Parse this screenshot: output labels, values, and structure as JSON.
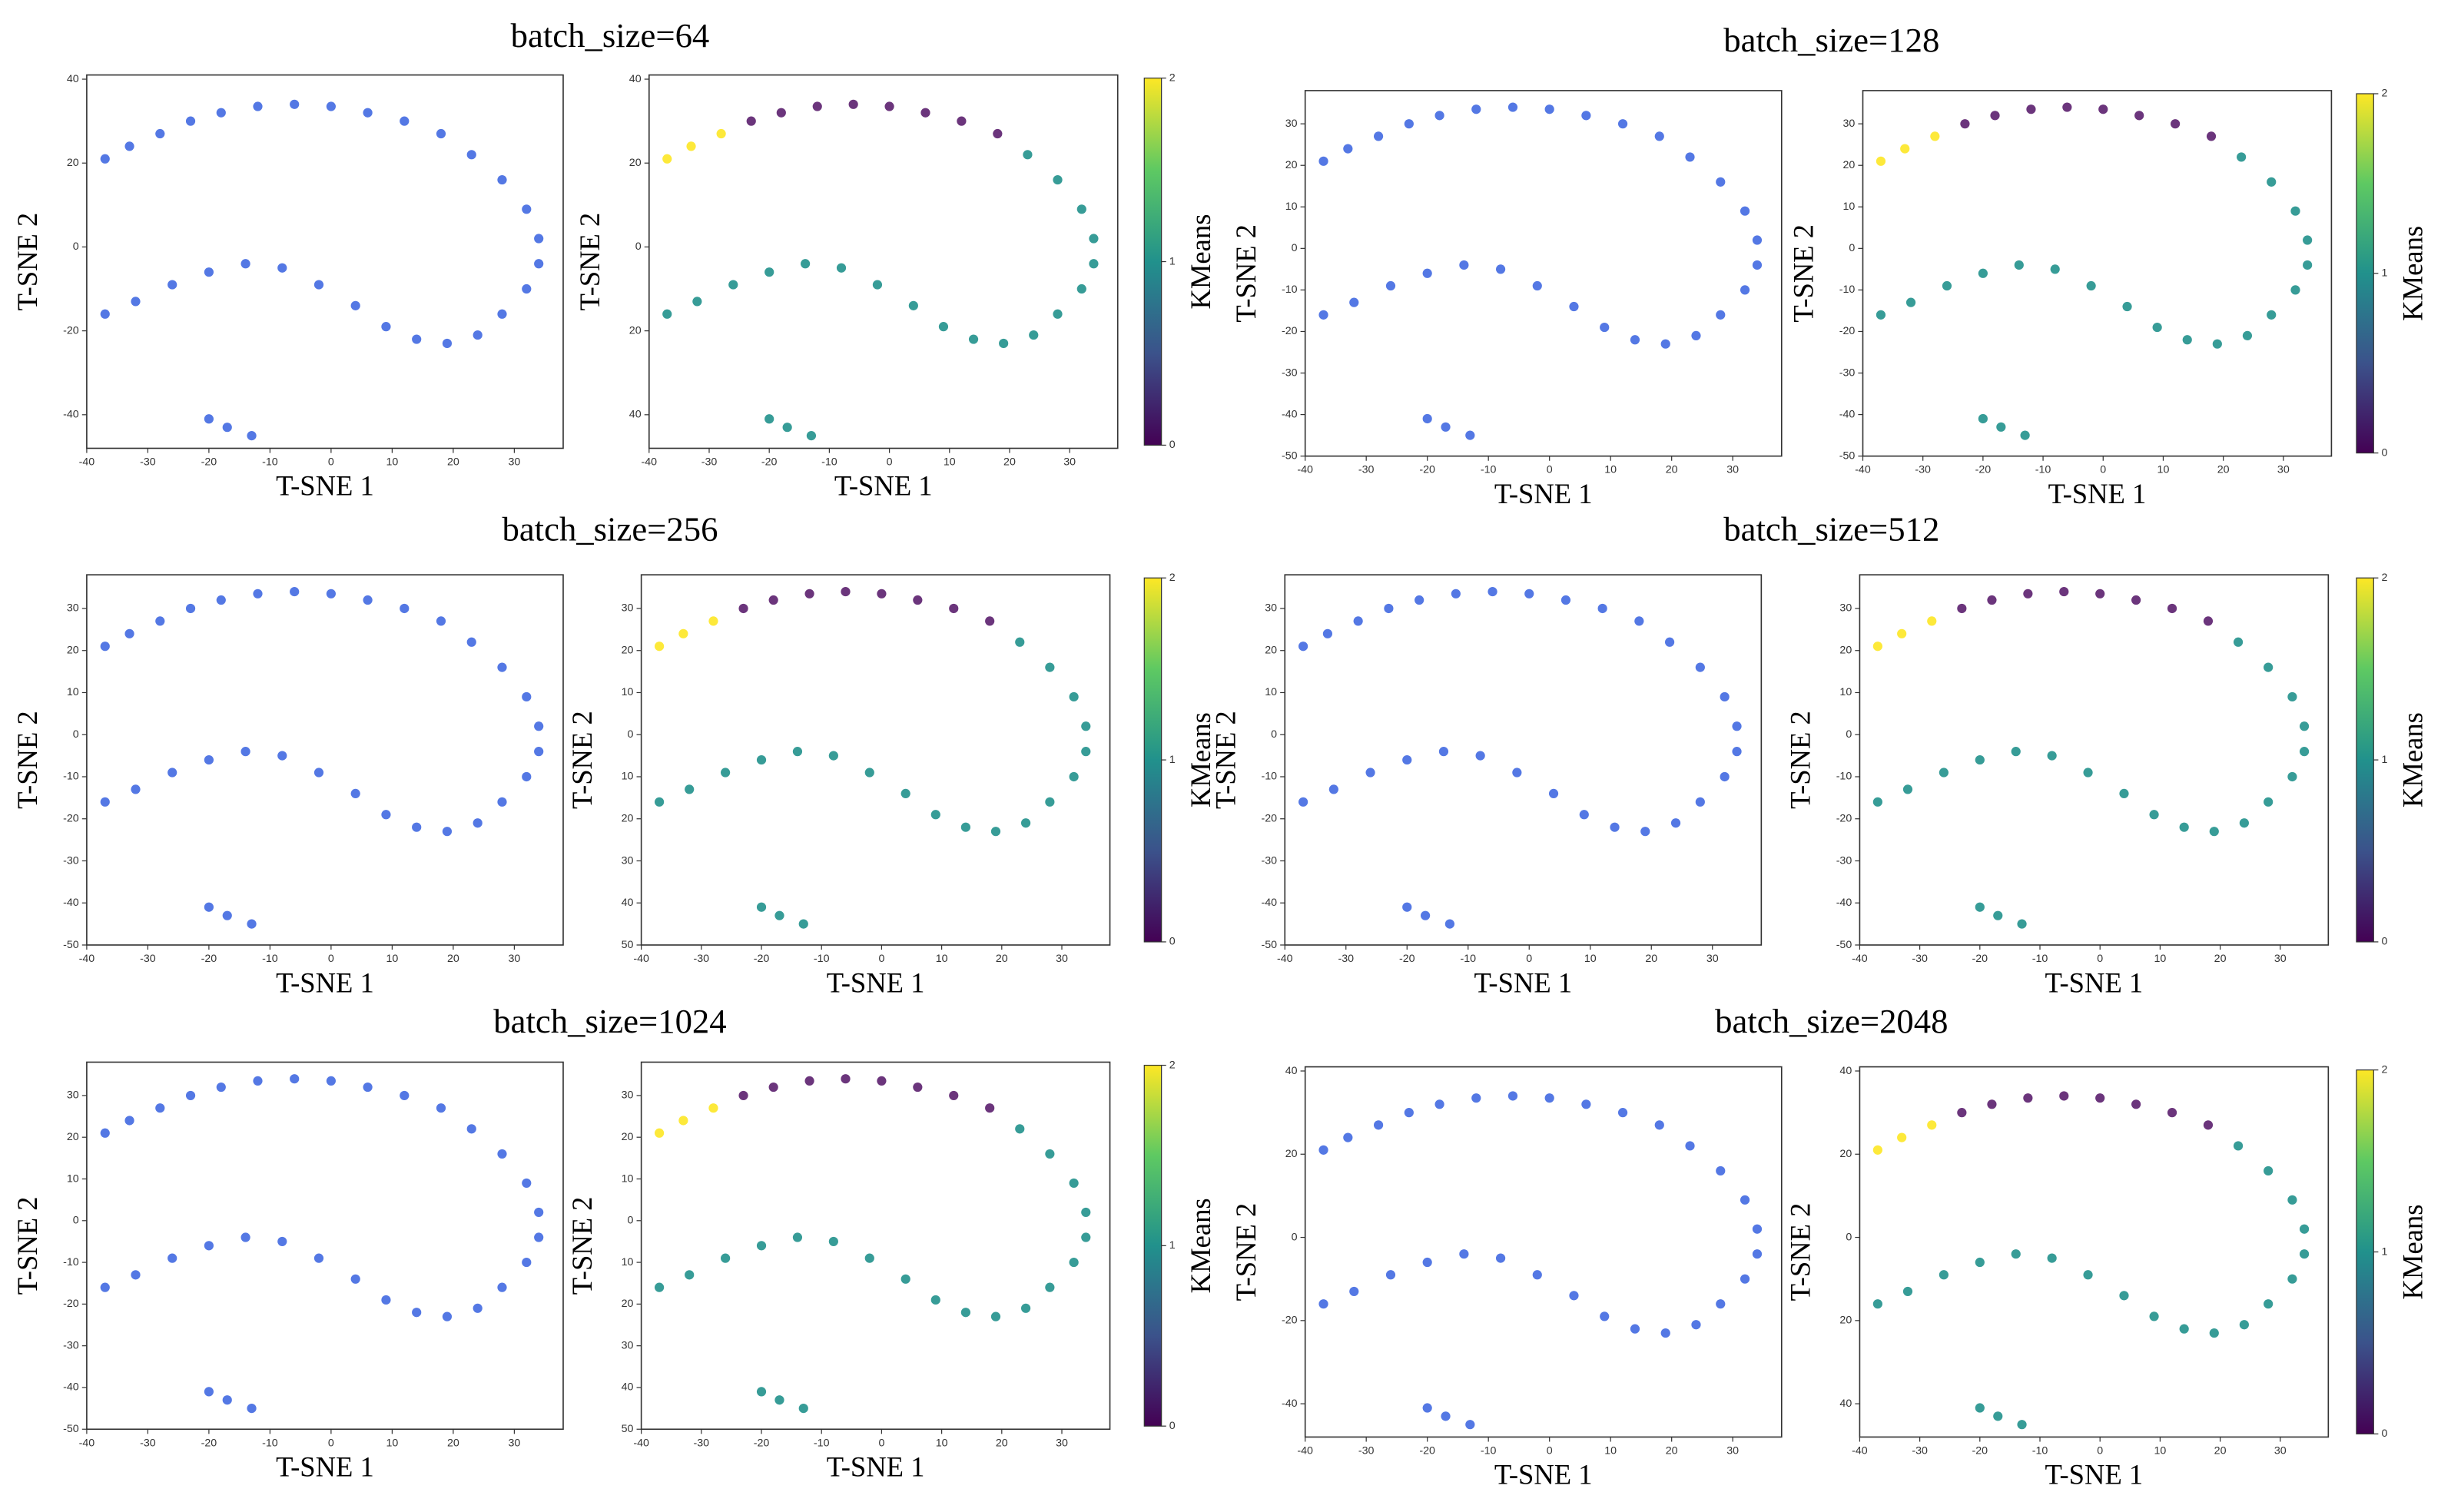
{
  "chart_data": [
    {
      "type": "scatter",
      "title": "batch_size=64",
      "xlabel": "T-SNE 1",
      "ylabel": "T-SNE 2",
      "clabel": "KMeans",
      "color": "#4169e1",
      "cluster_colors": [
        "#5b1f6e",
        "#21918c",
        "#fde725"
      ],
      "x": [
        -37,
        -33,
        -28,
        -23,
        -18,
        -12,
        -6,
        0,
        6,
        12,
        18,
        23,
        28,
        32,
        34,
        34,
        32,
        28,
        24,
        19,
        14,
        9,
        4,
        -2,
        -8,
        -14,
        -20,
        -26,
        -32,
        -37,
        -20,
        -17,
        -13
      ],
      "y": [
        21,
        24,
        27,
        30,
        32,
        33.5,
        34,
        33.5,
        32,
        30,
        27,
        22,
        16,
        9,
        2,
        -4,
        -10,
        -16,
        -21,
        -23,
        -22,
        -19,
        -14,
        -9,
        -5,
        -4,
        -6,
        -9,
        -13,
        -16,
        -41,
        -43,
        -45
      ],
      "cluster": [
        2,
        2,
        2,
        0,
        0,
        0,
        0,
        0,
        0,
        0,
        0,
        1,
        1,
        1,
        1,
        1,
        1,
        1,
        1,
        1,
        1,
        1,
        1,
        1,
        1,
        1,
        1,
        1,
        1,
        1,
        1,
        1,
        1
      ],
      "xlim": [
        -40,
        38
      ],
      "xticks": [
        -40,
        -30,
        -20,
        -10,
        0,
        10,
        20,
        30
      ],
      "ylim": [
        -48,
        41
      ],
      "yticks": [
        40,
        20,
        0,
        -20,
        -40
      ],
      "right_yticks": [
        40,
        20,
        0,
        {
          "value": -20,
          "label": "20"
        },
        {
          "value": -40,
          "label": "40"
        }
      ],
      "clim": [
        0,
        2
      ],
      "cticks": [
        0,
        1,
        2
      ]
    },
    {
      "type": "scatter",
      "title": "batch_size=128",
      "xlabel": "T-SNE 1",
      "ylabel": "T-SNE 2",
      "clabel": "KMeans",
      "color": "#4169e1",
      "cluster_colors": [
        "#5b1f6e",
        "#21918c",
        "#fde725"
      ],
      "x": [
        -37,
        -33,
        -28,
        -23,
        -18,
        -12,
        -6,
        0,
        6,
        12,
        18,
        23,
        28,
        32,
        34,
        34,
        32,
        28,
        24,
        19,
        14,
        9,
        4,
        -2,
        -8,
        -14,
        -20,
        -26,
        -32,
        -37,
        -20,
        -17,
        -13
      ],
      "y": [
        21,
        24,
        27,
        30,
        32,
        33.5,
        34,
        33.5,
        32,
        30,
        27,
        22,
        16,
        9,
        2,
        -4,
        -10,
        -16,
        -21,
        -23,
        -22,
        -19,
        -14,
        -9,
        -5,
        -4,
        -6,
        -9,
        -13,
        -16,
        -41,
        -43,
        -45
      ],
      "cluster": [
        2,
        2,
        2,
        0,
        0,
        0,
        0,
        0,
        0,
        0,
        0,
        1,
        1,
        1,
        1,
        1,
        1,
        1,
        1,
        1,
        1,
        1,
        1,
        1,
        1,
        1,
        1,
        1,
        1,
        1,
        1,
        1,
        1
      ],
      "xlim": [
        -40,
        38
      ],
      "xticks": [
        -40,
        -30,
        -20,
        -10,
        0,
        10,
        20,
        30
      ],
      "ylim": [
        -50,
        38
      ],
      "yticks": [
        30,
        20,
        10,
        0,
        -10,
        -20,
        -30,
        -40,
        -50
      ],
      "right_yticks": [
        30,
        20,
        10,
        0,
        -10,
        -20,
        -30,
        -40,
        -50
      ],
      "clim": [
        0,
        2
      ],
      "cticks": [
        0,
        1,
        2
      ]
    },
    {
      "type": "scatter",
      "title": "batch_size=256",
      "xlabel": "T-SNE 1",
      "ylabel": "T-SNE 2",
      "clabel": "KMeans",
      "color": "#4169e1",
      "cluster_colors": [
        "#5b1f6e",
        "#21918c",
        "#fde725"
      ],
      "x": [
        -37,
        -33,
        -28,
        -23,
        -18,
        -12,
        -6,
        0,
        6,
        12,
        18,
        23,
        28,
        32,
        34,
        34,
        32,
        28,
        24,
        19,
        14,
        9,
        4,
        -2,
        -8,
        -14,
        -20,
        -26,
        -32,
        -37,
        -20,
        -17,
        -13
      ],
      "y": [
        21,
        24,
        27,
        30,
        32,
        33.5,
        34,
        33.5,
        32,
        30,
        27,
        22,
        16,
        9,
        2,
        -4,
        -10,
        -16,
        -21,
        -23,
        -22,
        -19,
        -14,
        -9,
        -5,
        -4,
        -6,
        -9,
        -13,
        -16,
        -41,
        -43,
        -45
      ],
      "cluster": [
        2,
        2,
        2,
        0,
        0,
        0,
        0,
        0,
        0,
        0,
        0,
        1,
        1,
        1,
        1,
        1,
        1,
        1,
        1,
        1,
        1,
        1,
        1,
        1,
        1,
        1,
        1,
        1,
        1,
        1,
        1,
        1,
        1
      ],
      "xlim": [
        -40,
        38
      ],
      "xticks": [
        -40,
        -30,
        -20,
        -10,
        0,
        10,
        20,
        30
      ],
      "ylim": [
        -50,
        38
      ],
      "yticks": [
        30,
        20,
        10,
        0,
        -10,
        -20,
        -30,
        -40,
        -50
      ],
      "right_yticks": [
        30,
        20,
        10,
        0,
        {
          "value": -10,
          "label": "10"
        },
        {
          "value": -20,
          "label": "20"
        },
        {
          "value": -30,
          "label": "30"
        },
        {
          "value": -40,
          "label": "40"
        },
        {
          "value": -50,
          "label": "50"
        }
      ],
      "clim": [
        0,
        2
      ],
      "cticks": [
        0,
        1,
        2
      ]
    },
    {
      "type": "scatter",
      "title": "batch_size=512",
      "xlabel": "T-SNE 1",
      "ylabel": "T-SNE 2",
      "clabel": "KMeans",
      "color": "#4169e1",
      "cluster_colors": [
        "#5b1f6e",
        "#21918c",
        "#fde725"
      ],
      "x": [
        -37,
        -33,
        -28,
        -23,
        -18,
        -12,
        -6,
        0,
        6,
        12,
        18,
        23,
        28,
        32,
        34,
        34,
        32,
        28,
        24,
        19,
        14,
        9,
        4,
        -2,
        -8,
        -14,
        -20,
        -26,
        -32,
        -37,
        -20,
        -17,
        -13
      ],
      "y": [
        21,
        24,
        27,
        30,
        32,
        33.5,
        34,
        33.5,
        32,
        30,
        27,
        22,
        16,
        9,
        2,
        -4,
        -10,
        -16,
        -21,
        -23,
        -22,
        -19,
        -14,
        -9,
        -5,
        -4,
        -6,
        -9,
        -13,
        -16,
        -41,
        -43,
        -45
      ],
      "cluster": [
        2,
        2,
        2,
        0,
        0,
        0,
        0,
        0,
        0,
        0,
        0,
        1,
        1,
        1,
        1,
        1,
        1,
        1,
        1,
        1,
        1,
        1,
        1,
        1,
        1,
        1,
        1,
        1,
        1,
        1,
        1,
        1,
        1
      ],
      "xlim": [
        -40,
        38
      ],
      "xticks": [
        -40,
        -30,
        -20,
        -10,
        0,
        10,
        20,
        30
      ],
      "ylim": [
        -50,
        38
      ],
      "yticks": [
        30,
        20,
        10,
        0,
        -10,
        -20,
        -30,
        -40,
        -50
      ],
      "right_yticks": [
        30,
        20,
        10,
        0,
        -10,
        -20,
        -30,
        -40,
        -50
      ],
      "clim": [
        0,
        2
      ],
      "cticks": [
        0,
        1,
        2
      ]
    },
    {
      "type": "scatter",
      "title": "batch_size=1024",
      "xlabel": "T-SNE 1",
      "ylabel": "T-SNE 2",
      "clabel": "KMeans",
      "color": "#4169e1",
      "cluster_colors": [
        "#5b1f6e",
        "#21918c",
        "#fde725"
      ],
      "x": [
        -37,
        -33,
        -28,
        -23,
        -18,
        -12,
        -6,
        0,
        6,
        12,
        18,
        23,
        28,
        32,
        34,
        34,
        32,
        28,
        24,
        19,
        14,
        9,
        4,
        -2,
        -8,
        -14,
        -20,
        -26,
        -32,
        -37,
        -20,
        -17,
        -13
      ],
      "y": [
        21,
        24,
        27,
        30,
        32,
        33.5,
        34,
        33.5,
        32,
        30,
        27,
        22,
        16,
        9,
        2,
        -4,
        -10,
        -16,
        -21,
        -23,
        -22,
        -19,
        -14,
        -9,
        -5,
        -4,
        -6,
        -9,
        -13,
        -16,
        -41,
        -43,
        -45
      ],
      "cluster": [
        2,
        2,
        2,
        0,
        0,
        0,
        0,
        0,
        0,
        0,
        0,
        1,
        1,
        1,
        1,
        1,
        1,
        1,
        1,
        1,
        1,
        1,
        1,
        1,
        1,
        1,
        1,
        1,
        1,
        1,
        1,
        1,
        1
      ],
      "xlim": [
        -40,
        38
      ],
      "xticks": [
        -40,
        -30,
        -20,
        -10,
        0,
        10,
        20,
        30
      ],
      "ylim": [
        -50,
        38
      ],
      "yticks": [
        30,
        20,
        10,
        0,
        -10,
        -20,
        -30,
        -40,
        -50
      ],
      "right_yticks": [
        30,
        20,
        10,
        0,
        {
          "value": -10,
          "label": "10"
        },
        {
          "value": -20,
          "label": "20"
        },
        {
          "value": -30,
          "label": "30"
        },
        {
          "value": -40,
          "label": "40"
        },
        {
          "value": -50,
          "label": "50"
        }
      ],
      "clim": [
        0,
        2
      ],
      "cticks": [
        0,
        1,
        2
      ]
    },
    {
      "type": "scatter",
      "title": "batch_size=2048",
      "xlabel": "T-SNE 1",
      "ylabel": "T-SNE 2",
      "clabel": "KMeans",
      "color": "#4169e1",
      "cluster_colors": [
        "#5b1f6e",
        "#21918c",
        "#fde725"
      ],
      "x": [
        -37,
        -33,
        -28,
        -23,
        -18,
        -12,
        -6,
        0,
        6,
        12,
        18,
        23,
        28,
        32,
        34,
        34,
        32,
        28,
        24,
        19,
        14,
        9,
        4,
        -2,
        -8,
        -14,
        -20,
        -26,
        -32,
        -37,
        -20,
        -17,
        -13
      ],
      "y": [
        21,
        24,
        27,
        30,
        32,
        33.5,
        34,
        33.5,
        32,
        30,
        27,
        22,
        16,
        9,
        2,
        -4,
        -10,
        -16,
        -21,
        -23,
        -22,
        -19,
        -14,
        -9,
        -5,
        -4,
        -6,
        -9,
        -13,
        -16,
        -41,
        -43,
        -45
      ],
      "cluster": [
        2,
        2,
        2,
        0,
        0,
        0,
        0,
        0,
        0,
        0,
        0,
        1,
        1,
        1,
        1,
        1,
        1,
        1,
        1,
        1,
        1,
        1,
        1,
        1,
        1,
        1,
        1,
        1,
        1,
        1,
        1,
        1,
        1
      ],
      "xlim": [
        -40,
        38
      ],
      "xticks": [
        -40,
        -30,
        -20,
        -10,
        0,
        10,
        20,
        30
      ],
      "ylim": [
        -48,
        41
      ],
      "yticks": [
        40,
        20,
        0,
        -20,
        -40
      ],
      "right_yticks": [
        40,
        20,
        0,
        {
          "value": -20,
          "label": "20"
        },
        {
          "value": -40,
          "label": "40"
        }
      ],
      "clim": [
        0,
        2
      ],
      "cticks": [
        0,
        1,
        2
      ]
    }
  ]
}
